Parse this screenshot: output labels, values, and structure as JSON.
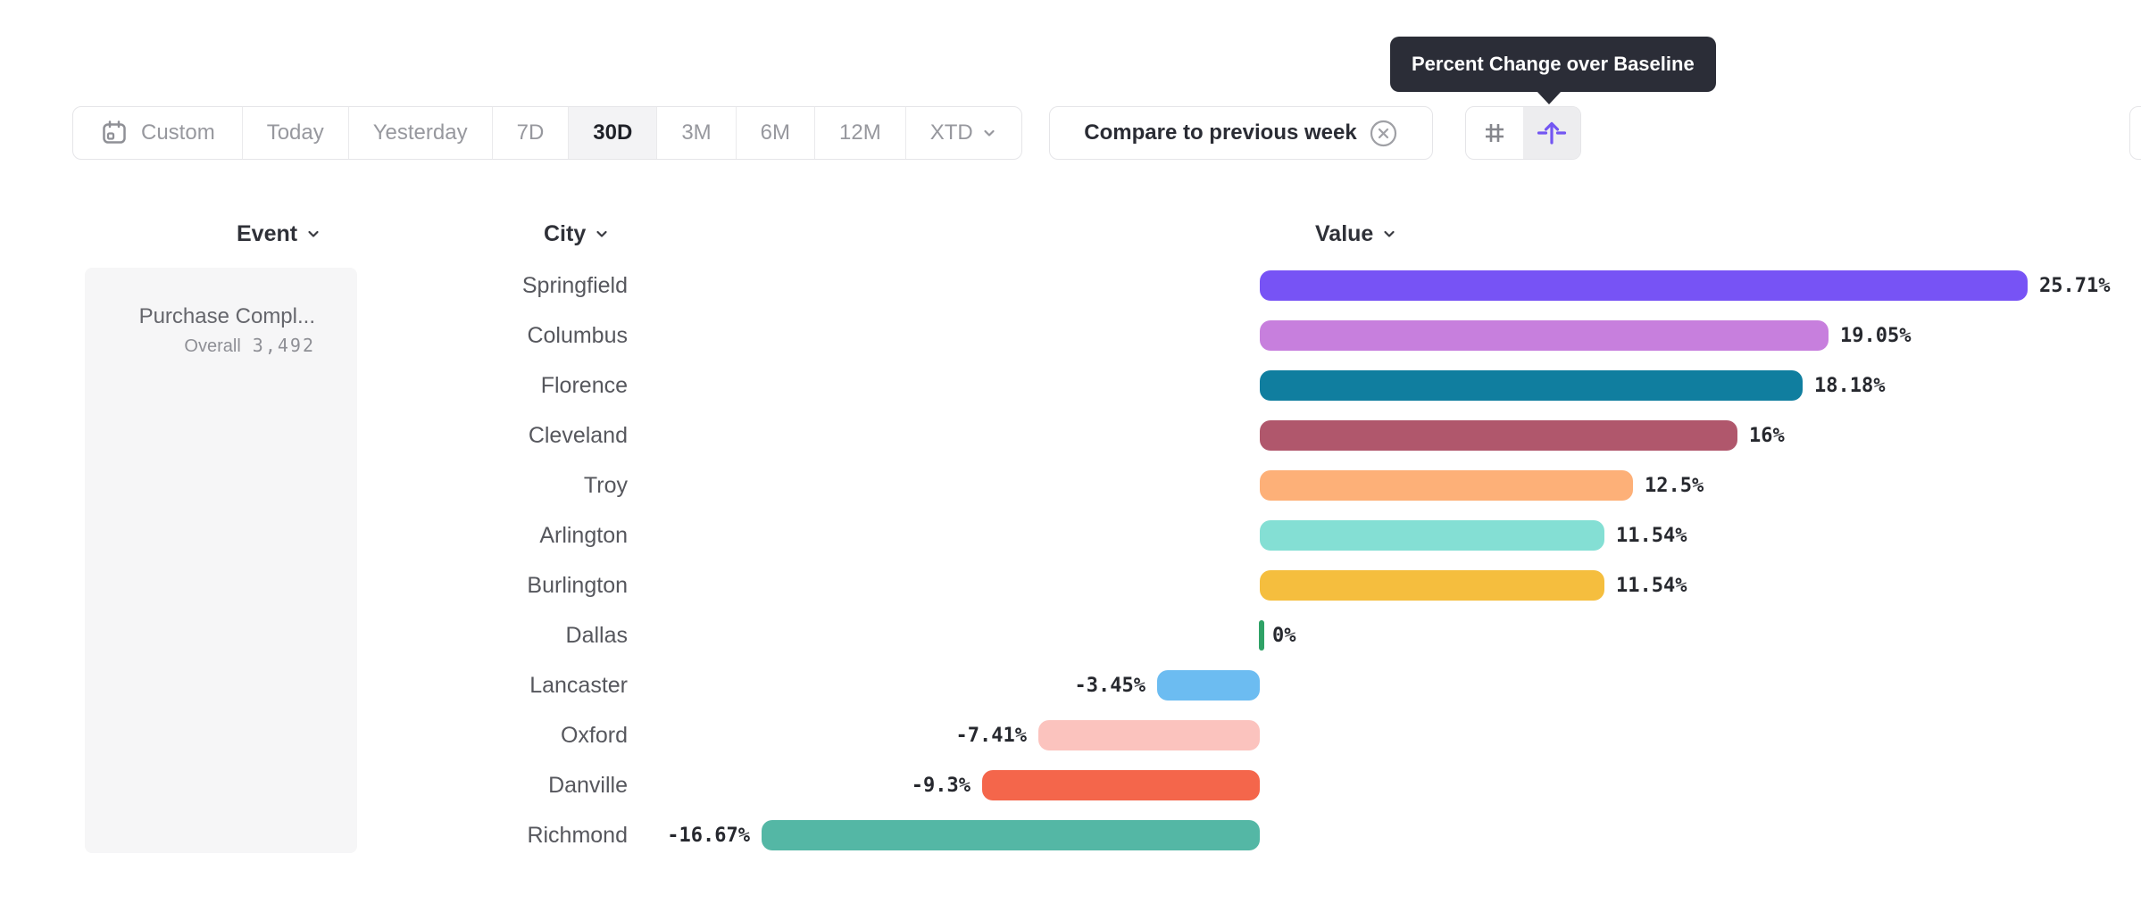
{
  "tooltip": {
    "text": "Percent Change over Baseline"
  },
  "toolbar": {
    "date_ranges": [
      {
        "label": "Custom"
      },
      {
        "label": "Today"
      },
      {
        "label": "Yesterday"
      },
      {
        "label": "7D"
      },
      {
        "label": "30D",
        "selected": true
      },
      {
        "label": "3M"
      },
      {
        "label": "6M"
      },
      {
        "label": "12M"
      },
      {
        "label": "XTD"
      }
    ],
    "compare_label": "Compare to previous week",
    "display_modes": {
      "options": [
        "numeric",
        "percent-change-over-baseline"
      ],
      "selected": "percent-change-over-baseline",
      "accent_color": "#7356F2"
    }
  },
  "columns": {
    "event": "Event",
    "city": "City",
    "value": "Value"
  },
  "event_card": {
    "name": "Purchase Compl...",
    "overall_label": "Overall",
    "overall_value": "3,492"
  },
  "chart_data": {
    "type": "bar",
    "orientation": "horizontal",
    "title": "Percent Change over Baseline",
    "value_suffix": "%",
    "baseline": 0,
    "xlim": [
      -16.67,
      25.71
    ],
    "categories": [
      "Springfield",
      "Columbus",
      "Florence",
      "Cleveland",
      "Troy",
      "Arlington",
      "Burlington",
      "Dallas",
      "Lancaster",
      "Oxford",
      "Danville",
      "Richmond"
    ],
    "values": [
      25.71,
      19.05,
      18.18,
      16,
      12.5,
      11.54,
      11.54,
      0,
      -3.45,
      -7.41,
      -9.3,
      -16.67
    ],
    "labels": [
      "25.71%",
      "19.05%",
      "18.18%",
      "16%",
      "12.5%",
      "11.54%",
      "11.54%",
      "0%",
      "-3.45%",
      "-7.41%",
      "-9.3%",
      "-16.67%"
    ],
    "colors": [
      "#7753F5",
      "#C77FDD",
      "#107E9F",
      "#B0576C",
      "#FDB078",
      "#84DFD4",
      "#F5BE3E",
      "#2FA266",
      "#6CBCF1",
      "#FBC3BE",
      "#F4664B",
      "#54B7A5"
    ],
    "zero_marker_color": "#2FA266"
  }
}
